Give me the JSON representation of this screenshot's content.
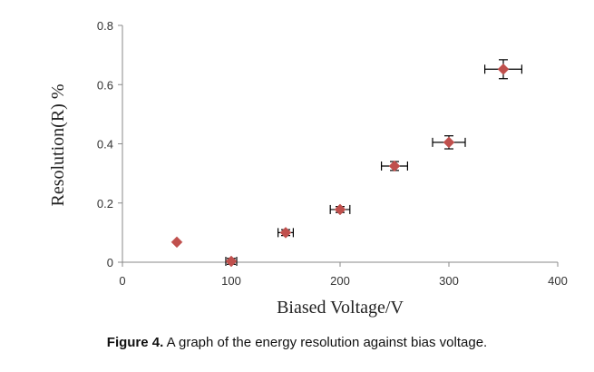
{
  "chart_data": {
    "type": "scatter",
    "title": "",
    "xlabel": "Biased Voltage/V",
    "ylabel": "Resolution(R) %",
    "xlim": [
      0,
      400
    ],
    "ylim": [
      0,
      0.8
    ],
    "xticks": [
      0,
      100,
      200,
      300,
      400
    ],
    "yticks": [
      0,
      0.2,
      0.4,
      0.6,
      0.8
    ],
    "ytick_labels": [
      "0",
      "0.2",
      "0.4",
      "0.6",
      "0.8"
    ],
    "grid": false,
    "series": [
      {
        "name": "Resolution",
        "marker": "diamond",
        "color": "#c0504d",
        "points": [
          {
            "x": 50,
            "y": 0.068,
            "xerr": 0,
            "yerr": 0
          },
          {
            "x": 100,
            "y": 0.003,
            "xerr": 5,
            "yerr": 0.01
          },
          {
            "x": 150,
            "y": 0.1,
            "xerr": 7,
            "yerr": 0.01
          },
          {
            "x": 200,
            "y": 0.178,
            "xerr": 9,
            "yerr": 0.01
          },
          {
            "x": 250,
            "y": 0.325,
            "xerr": 12,
            "yerr": 0.015
          },
          {
            "x": 300,
            "y": 0.405,
            "xerr": 15,
            "yerr": 0.022
          },
          {
            "x": 350,
            "y": 0.652,
            "xerr": 17,
            "yerr": 0.032
          }
        ]
      }
    ]
  },
  "caption": {
    "label": "Figure 4.",
    "text": " A graph of the energy resolution against bias voltage."
  }
}
